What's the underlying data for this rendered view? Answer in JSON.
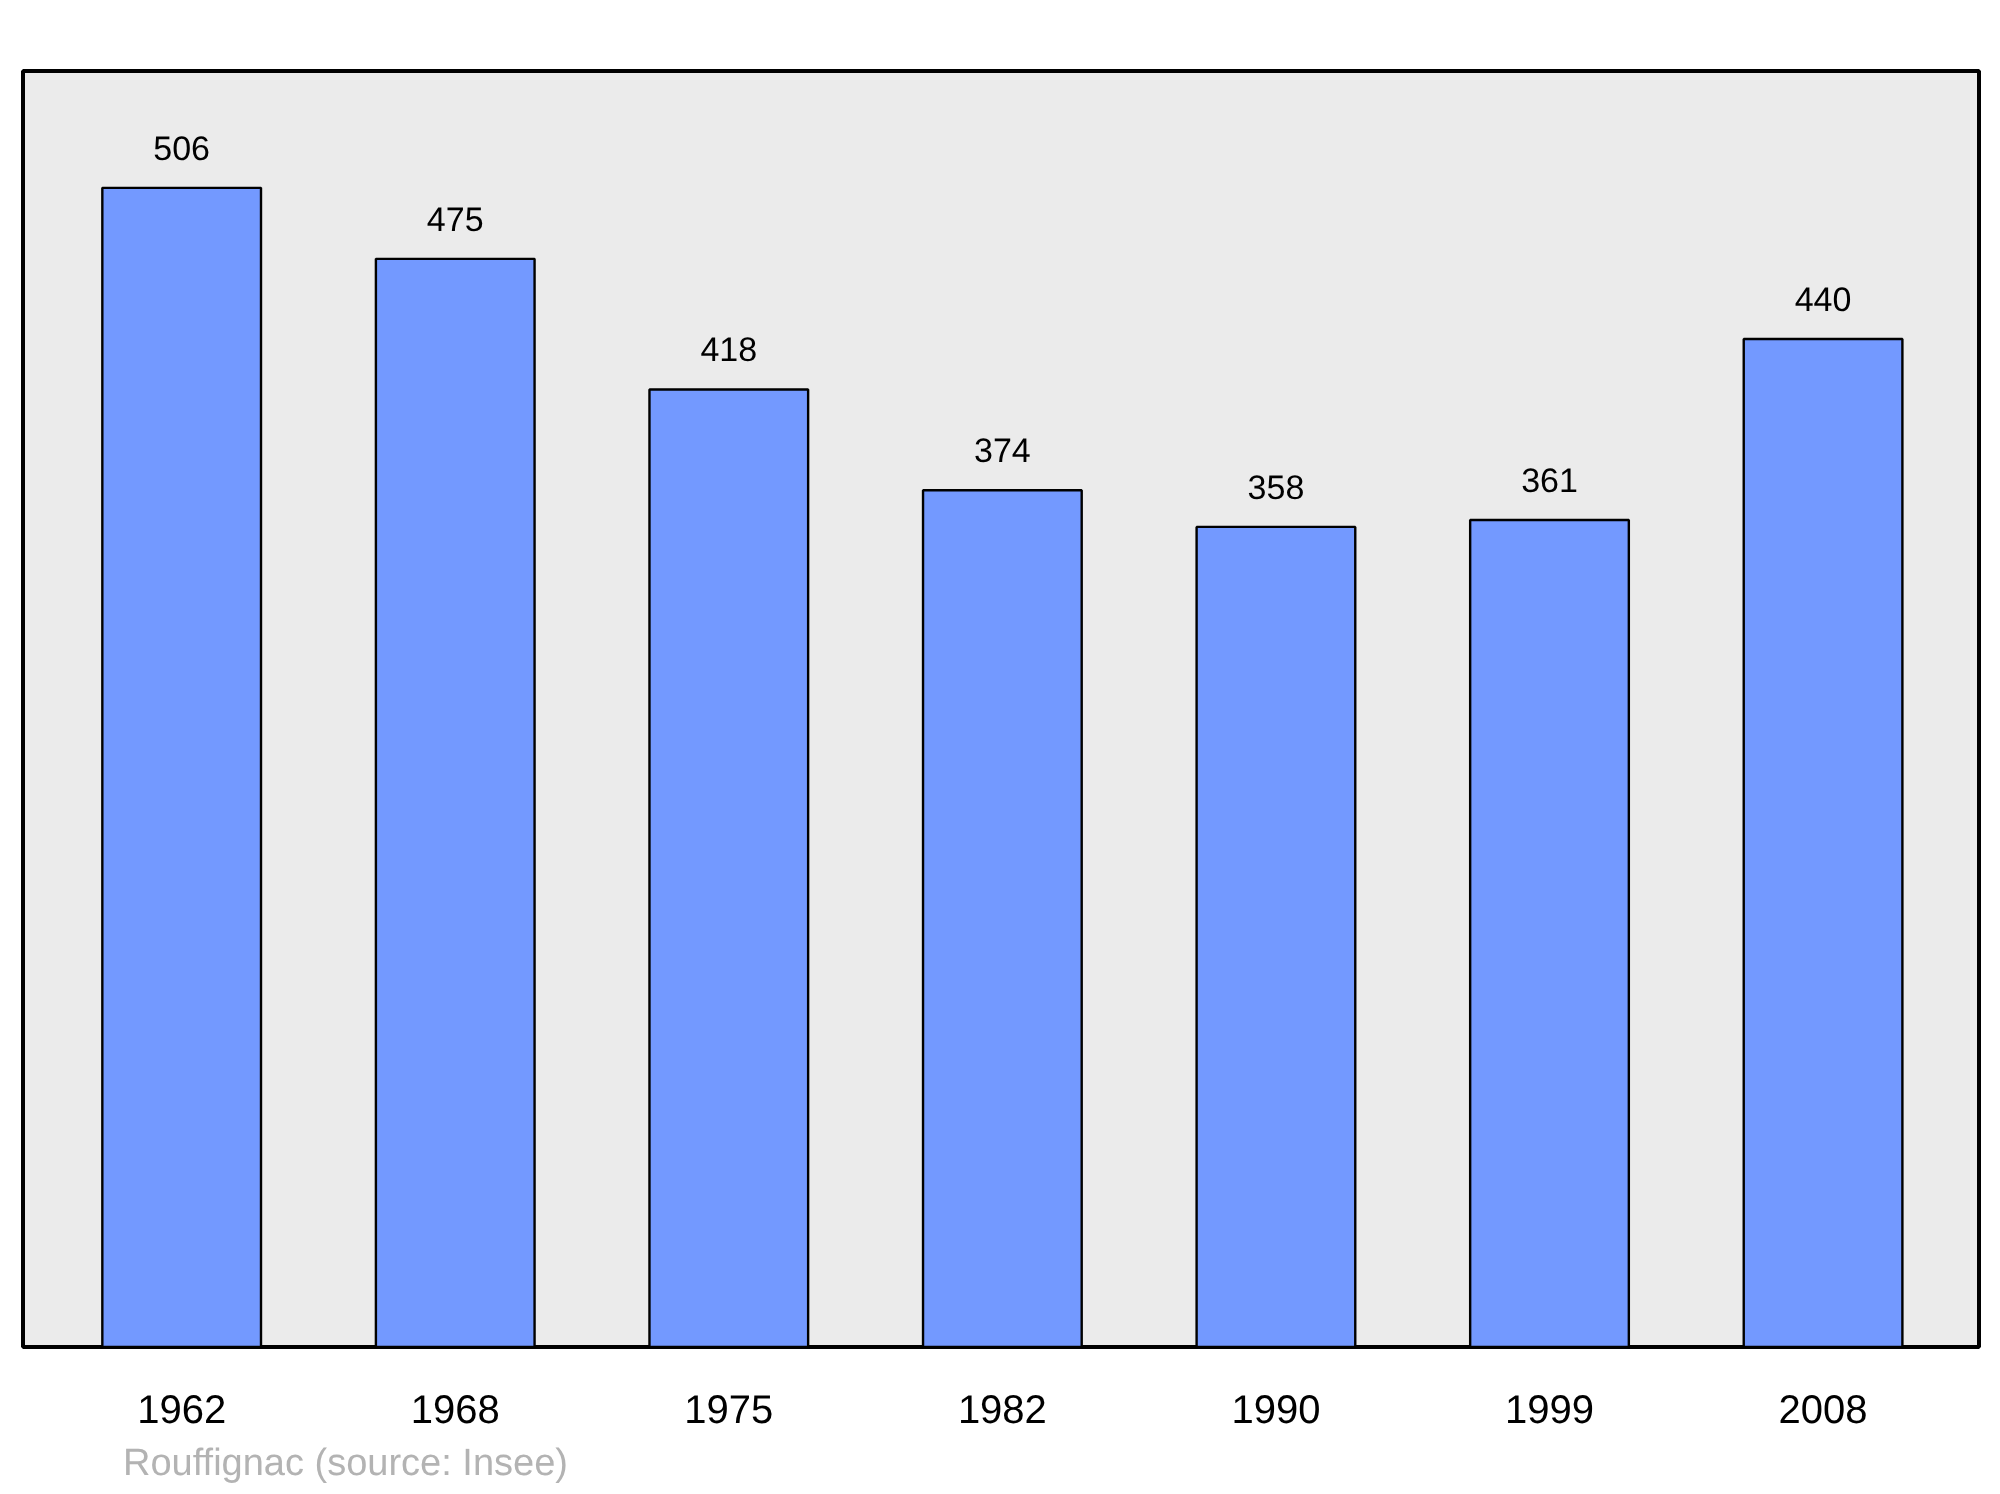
{
  "chart_data": {
    "type": "bar",
    "categories": [
      "1962",
      "1968",
      "1975",
      "1982",
      "1990",
      "1999",
      "2008"
    ],
    "values": [
      506,
      475,
      418,
      374,
      358,
      361,
      440
    ],
    "color": "#7399ff",
    "data_labels": true,
    "ylim": [
      0,
      557
    ],
    "grid": false,
    "annotations": [
      "Rouffignac    (source: Insee)"
    ]
  }
}
